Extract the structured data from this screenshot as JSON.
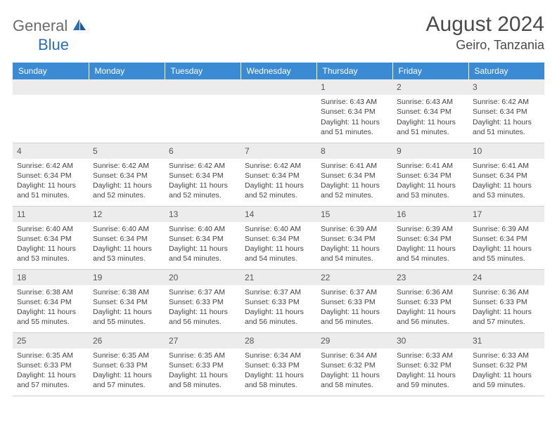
{
  "logo": {
    "part1": "General",
    "part2": "Blue"
  },
  "title": "August 2024",
  "location": "Geiro, Tanzania",
  "colors": {
    "header_bg": "#3b8bd4",
    "header_text": "#ffffff",
    "daynum_bg": "#ececec",
    "text": "#444444",
    "logo_gray": "#6b6b6b",
    "logo_blue": "#2a6fb5"
  },
  "weekdays": [
    "Sunday",
    "Monday",
    "Tuesday",
    "Wednesday",
    "Thursday",
    "Friday",
    "Saturday"
  ],
  "weeks": [
    [
      {
        "n": "",
        "sr": "",
        "ss": "",
        "dl": ""
      },
      {
        "n": "",
        "sr": "",
        "ss": "",
        "dl": ""
      },
      {
        "n": "",
        "sr": "",
        "ss": "",
        "dl": ""
      },
      {
        "n": "",
        "sr": "",
        "ss": "",
        "dl": ""
      },
      {
        "n": "1",
        "sr": "Sunrise: 6:43 AM",
        "ss": "Sunset: 6:34 PM",
        "dl": "Daylight: 11 hours and 51 minutes."
      },
      {
        "n": "2",
        "sr": "Sunrise: 6:43 AM",
        "ss": "Sunset: 6:34 PM",
        "dl": "Daylight: 11 hours and 51 minutes."
      },
      {
        "n": "3",
        "sr": "Sunrise: 6:42 AM",
        "ss": "Sunset: 6:34 PM",
        "dl": "Daylight: 11 hours and 51 minutes."
      }
    ],
    [
      {
        "n": "4",
        "sr": "Sunrise: 6:42 AM",
        "ss": "Sunset: 6:34 PM",
        "dl": "Daylight: 11 hours and 51 minutes."
      },
      {
        "n": "5",
        "sr": "Sunrise: 6:42 AM",
        "ss": "Sunset: 6:34 PM",
        "dl": "Daylight: 11 hours and 52 minutes."
      },
      {
        "n": "6",
        "sr": "Sunrise: 6:42 AM",
        "ss": "Sunset: 6:34 PM",
        "dl": "Daylight: 11 hours and 52 minutes."
      },
      {
        "n": "7",
        "sr": "Sunrise: 6:42 AM",
        "ss": "Sunset: 6:34 PM",
        "dl": "Daylight: 11 hours and 52 minutes."
      },
      {
        "n": "8",
        "sr": "Sunrise: 6:41 AM",
        "ss": "Sunset: 6:34 PM",
        "dl": "Daylight: 11 hours and 52 minutes."
      },
      {
        "n": "9",
        "sr": "Sunrise: 6:41 AM",
        "ss": "Sunset: 6:34 PM",
        "dl": "Daylight: 11 hours and 53 minutes."
      },
      {
        "n": "10",
        "sr": "Sunrise: 6:41 AM",
        "ss": "Sunset: 6:34 PM",
        "dl": "Daylight: 11 hours and 53 minutes."
      }
    ],
    [
      {
        "n": "11",
        "sr": "Sunrise: 6:40 AM",
        "ss": "Sunset: 6:34 PM",
        "dl": "Daylight: 11 hours and 53 minutes."
      },
      {
        "n": "12",
        "sr": "Sunrise: 6:40 AM",
        "ss": "Sunset: 6:34 PM",
        "dl": "Daylight: 11 hours and 53 minutes."
      },
      {
        "n": "13",
        "sr": "Sunrise: 6:40 AM",
        "ss": "Sunset: 6:34 PM",
        "dl": "Daylight: 11 hours and 54 minutes."
      },
      {
        "n": "14",
        "sr": "Sunrise: 6:40 AM",
        "ss": "Sunset: 6:34 PM",
        "dl": "Daylight: 11 hours and 54 minutes."
      },
      {
        "n": "15",
        "sr": "Sunrise: 6:39 AM",
        "ss": "Sunset: 6:34 PM",
        "dl": "Daylight: 11 hours and 54 minutes."
      },
      {
        "n": "16",
        "sr": "Sunrise: 6:39 AM",
        "ss": "Sunset: 6:34 PM",
        "dl": "Daylight: 11 hours and 54 minutes."
      },
      {
        "n": "17",
        "sr": "Sunrise: 6:39 AM",
        "ss": "Sunset: 6:34 PM",
        "dl": "Daylight: 11 hours and 55 minutes."
      }
    ],
    [
      {
        "n": "18",
        "sr": "Sunrise: 6:38 AM",
        "ss": "Sunset: 6:34 PM",
        "dl": "Daylight: 11 hours and 55 minutes."
      },
      {
        "n": "19",
        "sr": "Sunrise: 6:38 AM",
        "ss": "Sunset: 6:34 PM",
        "dl": "Daylight: 11 hours and 55 minutes."
      },
      {
        "n": "20",
        "sr": "Sunrise: 6:37 AM",
        "ss": "Sunset: 6:33 PM",
        "dl": "Daylight: 11 hours and 56 minutes."
      },
      {
        "n": "21",
        "sr": "Sunrise: 6:37 AM",
        "ss": "Sunset: 6:33 PM",
        "dl": "Daylight: 11 hours and 56 minutes."
      },
      {
        "n": "22",
        "sr": "Sunrise: 6:37 AM",
        "ss": "Sunset: 6:33 PM",
        "dl": "Daylight: 11 hours and 56 minutes."
      },
      {
        "n": "23",
        "sr": "Sunrise: 6:36 AM",
        "ss": "Sunset: 6:33 PM",
        "dl": "Daylight: 11 hours and 56 minutes."
      },
      {
        "n": "24",
        "sr": "Sunrise: 6:36 AM",
        "ss": "Sunset: 6:33 PM",
        "dl": "Daylight: 11 hours and 57 minutes."
      }
    ],
    [
      {
        "n": "25",
        "sr": "Sunrise: 6:35 AM",
        "ss": "Sunset: 6:33 PM",
        "dl": "Daylight: 11 hours and 57 minutes."
      },
      {
        "n": "26",
        "sr": "Sunrise: 6:35 AM",
        "ss": "Sunset: 6:33 PM",
        "dl": "Daylight: 11 hours and 57 minutes."
      },
      {
        "n": "27",
        "sr": "Sunrise: 6:35 AM",
        "ss": "Sunset: 6:33 PM",
        "dl": "Daylight: 11 hours and 58 minutes."
      },
      {
        "n": "28",
        "sr": "Sunrise: 6:34 AM",
        "ss": "Sunset: 6:33 PM",
        "dl": "Daylight: 11 hours and 58 minutes."
      },
      {
        "n": "29",
        "sr": "Sunrise: 6:34 AM",
        "ss": "Sunset: 6:32 PM",
        "dl": "Daylight: 11 hours and 58 minutes."
      },
      {
        "n": "30",
        "sr": "Sunrise: 6:33 AM",
        "ss": "Sunset: 6:32 PM",
        "dl": "Daylight: 11 hours and 59 minutes."
      },
      {
        "n": "31",
        "sr": "Sunrise: 6:33 AM",
        "ss": "Sunset: 6:32 PM",
        "dl": "Daylight: 11 hours and 59 minutes."
      }
    ]
  ]
}
